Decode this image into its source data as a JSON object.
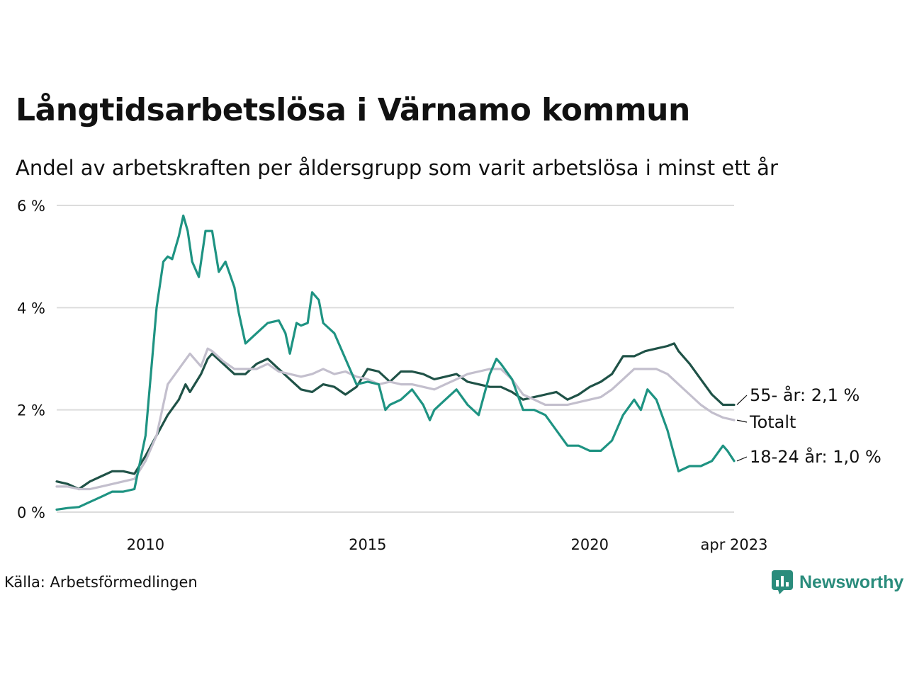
{
  "title": "Långtidsarbetslösa i Värnamo kommun",
  "subtitle": "Andel av arbetskraften per åldersgrupp som varit arbetslösa i minst ett år",
  "source": "Källa: Arbetsförmedlingen",
  "brand": {
    "name": "Newsworthy",
    "icon": "newsworthy-chart-bubble-icon",
    "color": "#2a8c7c"
  },
  "chart_data": {
    "type": "line",
    "x_tick_labels": [
      "2010",
      "2015",
      "2020",
      "apr 2023"
    ],
    "x_tick_values": [
      2010.0,
      2015.0,
      2020.0,
      2023.25
    ],
    "y_tick_labels": [
      "0 %",
      "2 %",
      "4 %",
      "6 %"
    ],
    "y_tick_values": [
      0,
      2,
      4,
      6
    ],
    "xlim": [
      2008.0,
      2023.25
    ],
    "ylim": [
      0,
      6
    ],
    "grid": "horizontal",
    "series": [
      {
        "key": "age55",
        "end_label": "55- år: 2,1 %",
        "color": "#1f5247",
        "points": [
          [
            2008.0,
            0.6
          ],
          [
            2008.25,
            0.55
          ],
          [
            2008.5,
            0.45
          ],
          [
            2008.75,
            0.6
          ],
          [
            2009.0,
            0.7
          ],
          [
            2009.25,
            0.8
          ],
          [
            2009.5,
            0.8
          ],
          [
            2009.75,
            0.75
          ],
          [
            2010.0,
            1.1
          ],
          [
            2010.25,
            1.5
          ],
          [
            2010.5,
            1.9
          ],
          [
            2010.75,
            2.2
          ],
          [
            2010.9,
            2.5
          ],
          [
            2011.0,
            2.35
          ],
          [
            2011.25,
            2.7
          ],
          [
            2011.4,
            3.0
          ],
          [
            2011.5,
            3.1
          ],
          [
            2011.75,
            2.9
          ],
          [
            2012.0,
            2.7
          ],
          [
            2012.25,
            2.7
          ],
          [
            2012.5,
            2.9
          ],
          [
            2012.75,
            3.0
          ],
          [
            2013.0,
            2.8
          ],
          [
            2013.25,
            2.6
          ],
          [
            2013.5,
            2.4
          ],
          [
            2013.75,
            2.35
          ],
          [
            2014.0,
            2.5
          ],
          [
            2014.25,
            2.45
          ],
          [
            2014.5,
            2.3
          ],
          [
            2014.75,
            2.45
          ],
          [
            2015.0,
            2.8
          ],
          [
            2015.25,
            2.75
          ],
          [
            2015.5,
            2.55
          ],
          [
            2015.75,
            2.75
          ],
          [
            2016.0,
            2.75
          ],
          [
            2016.25,
            2.7
          ],
          [
            2016.5,
            2.6
          ],
          [
            2016.75,
            2.65
          ],
          [
            2017.0,
            2.7
          ],
          [
            2017.25,
            2.55
          ],
          [
            2017.5,
            2.5
          ],
          [
            2017.75,
            2.45
          ],
          [
            2018.0,
            2.45
          ],
          [
            2018.25,
            2.35
          ],
          [
            2018.5,
            2.2
          ],
          [
            2018.75,
            2.25
          ],
          [
            2019.0,
            2.3
          ],
          [
            2019.25,
            2.35
          ],
          [
            2019.5,
            2.2
          ],
          [
            2019.75,
            2.3
          ],
          [
            2020.0,
            2.45
          ],
          [
            2020.25,
            2.55
          ],
          [
            2020.5,
            2.7
          ],
          [
            2020.75,
            3.05
          ],
          [
            2021.0,
            3.05
          ],
          [
            2021.25,
            3.15
          ],
          [
            2021.5,
            3.2
          ],
          [
            2021.75,
            3.25
          ],
          [
            2021.9,
            3.3
          ],
          [
            2022.0,
            3.15
          ],
          [
            2022.25,
            2.9
          ],
          [
            2022.5,
            2.6
          ],
          [
            2022.75,
            2.3
          ],
          [
            2023.0,
            2.1
          ],
          [
            2023.25,
            2.1
          ]
        ]
      },
      {
        "key": "total",
        "end_label": "Totalt",
        "color": "#c3bfcd",
        "points": [
          [
            2008.0,
            0.5
          ],
          [
            2008.25,
            0.5
          ],
          [
            2008.5,
            0.45
          ],
          [
            2008.75,
            0.45
          ],
          [
            2009.0,
            0.5
          ],
          [
            2009.25,
            0.55
          ],
          [
            2009.5,
            0.6
          ],
          [
            2009.75,
            0.65
          ],
          [
            2010.0,
            1.0
          ],
          [
            2010.25,
            1.5
          ],
          [
            2010.5,
            2.5
          ],
          [
            2010.75,
            2.8
          ],
          [
            2011.0,
            3.1
          ],
          [
            2011.25,
            2.85
          ],
          [
            2011.4,
            3.2
          ],
          [
            2011.5,
            3.15
          ],
          [
            2011.75,
            2.95
          ],
          [
            2012.0,
            2.8
          ],
          [
            2012.25,
            2.8
          ],
          [
            2012.5,
            2.8
          ],
          [
            2012.75,
            2.9
          ],
          [
            2013.0,
            2.75
          ],
          [
            2013.25,
            2.7
          ],
          [
            2013.5,
            2.65
          ],
          [
            2013.75,
            2.7
          ],
          [
            2014.0,
            2.8
          ],
          [
            2014.25,
            2.7
          ],
          [
            2014.5,
            2.75
          ],
          [
            2014.75,
            2.65
          ],
          [
            2015.0,
            2.6
          ],
          [
            2015.25,
            2.5
          ],
          [
            2015.5,
            2.55
          ],
          [
            2015.75,
            2.5
          ],
          [
            2016.0,
            2.5
          ],
          [
            2016.25,
            2.45
          ],
          [
            2016.5,
            2.4
          ],
          [
            2016.75,
            2.5
          ],
          [
            2017.0,
            2.6
          ],
          [
            2017.25,
            2.7
          ],
          [
            2017.5,
            2.75
          ],
          [
            2017.75,
            2.8
          ],
          [
            2018.0,
            2.8
          ],
          [
            2018.25,
            2.6
          ],
          [
            2018.5,
            2.3
          ],
          [
            2018.75,
            2.2
          ],
          [
            2019.0,
            2.1
          ],
          [
            2019.25,
            2.1
          ],
          [
            2019.5,
            2.1
          ],
          [
            2019.75,
            2.15
          ],
          [
            2020.0,
            2.2
          ],
          [
            2020.25,
            2.25
          ],
          [
            2020.5,
            2.4
          ],
          [
            2020.75,
            2.6
          ],
          [
            2021.0,
            2.8
          ],
          [
            2021.25,
            2.8
          ],
          [
            2021.5,
            2.8
          ],
          [
            2021.75,
            2.7
          ],
          [
            2022.0,
            2.5
          ],
          [
            2022.25,
            2.3
          ],
          [
            2022.5,
            2.1
          ],
          [
            2022.75,
            1.95
          ],
          [
            2023.0,
            1.85
          ],
          [
            2023.25,
            1.8
          ]
        ]
      },
      {
        "key": "age18_24",
        "end_label": "18-24 år: 1,0 %",
        "color": "#1e9382",
        "points": [
          [
            2008.0,
            0.05
          ],
          [
            2008.25,
            0.08
          ],
          [
            2008.5,
            0.1
          ],
          [
            2008.75,
            0.2
          ],
          [
            2009.0,
            0.3
          ],
          [
            2009.25,
            0.4
          ],
          [
            2009.5,
            0.4
          ],
          [
            2009.75,
            0.45
          ],
          [
            2010.0,
            1.5
          ],
          [
            2010.15,
            3.0
          ],
          [
            2010.25,
            4.0
          ],
          [
            2010.4,
            4.9
          ],
          [
            2010.5,
            5.0
          ],
          [
            2010.6,
            4.95
          ],
          [
            2010.75,
            5.4
          ],
          [
            2010.85,
            5.8
          ],
          [
            2010.95,
            5.5
          ],
          [
            2011.05,
            4.9
          ],
          [
            2011.2,
            4.6
          ],
          [
            2011.35,
            5.5
          ],
          [
            2011.5,
            5.5
          ],
          [
            2011.65,
            4.7
          ],
          [
            2011.8,
            4.9
          ],
          [
            2012.0,
            4.4
          ],
          [
            2012.1,
            3.9
          ],
          [
            2012.25,
            3.3
          ],
          [
            2012.5,
            3.5
          ],
          [
            2012.75,
            3.7
          ],
          [
            2013.0,
            3.75
          ],
          [
            2013.15,
            3.5
          ],
          [
            2013.25,
            3.1
          ],
          [
            2013.4,
            3.7
          ],
          [
            2013.5,
            3.65
          ],
          [
            2013.65,
            3.7
          ],
          [
            2013.75,
            4.3
          ],
          [
            2013.9,
            4.15
          ],
          [
            2014.0,
            3.7
          ],
          [
            2014.25,
            3.5
          ],
          [
            2014.5,
            3.0
          ],
          [
            2014.65,
            2.7
          ],
          [
            2014.75,
            2.5
          ],
          [
            2015.0,
            2.55
          ],
          [
            2015.25,
            2.5
          ],
          [
            2015.4,
            2.0
          ],
          [
            2015.5,
            2.1
          ],
          [
            2015.75,
            2.2
          ],
          [
            2016.0,
            2.4
          ],
          [
            2016.25,
            2.1
          ],
          [
            2016.4,
            1.8
          ],
          [
            2016.5,
            2.0
          ],
          [
            2016.75,
            2.2
          ],
          [
            2017.0,
            2.4
          ],
          [
            2017.25,
            2.1
          ],
          [
            2017.5,
            1.9
          ],
          [
            2017.75,
            2.7
          ],
          [
            2017.9,
            3.0
          ],
          [
            2018.0,
            2.9
          ],
          [
            2018.25,
            2.6
          ],
          [
            2018.5,
            2.0
          ],
          [
            2018.75,
            2.0
          ],
          [
            2019.0,
            1.9
          ],
          [
            2019.25,
            1.6
          ],
          [
            2019.5,
            1.3
          ],
          [
            2019.75,
            1.3
          ],
          [
            2020.0,
            1.2
          ],
          [
            2020.25,
            1.2
          ],
          [
            2020.5,
            1.4
          ],
          [
            2020.75,
            1.9
          ],
          [
            2021.0,
            2.2
          ],
          [
            2021.15,
            2.0
          ],
          [
            2021.3,
            2.4
          ],
          [
            2021.5,
            2.2
          ],
          [
            2021.75,
            1.6
          ],
          [
            2022.0,
            0.8
          ],
          [
            2022.25,
            0.9
          ],
          [
            2022.5,
            0.9
          ],
          [
            2022.75,
            1.0
          ],
          [
            2023.0,
            1.3
          ],
          [
            2023.1,
            1.2
          ],
          [
            2023.25,
            1.0
          ]
        ]
      }
    ]
  }
}
